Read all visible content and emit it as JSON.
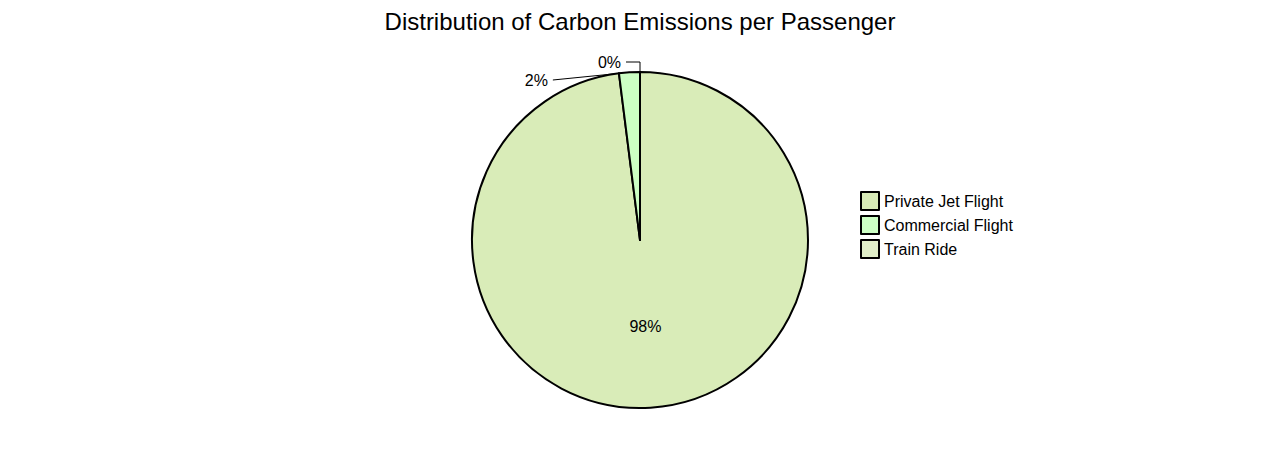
{
  "chart_data": {
    "type": "pie",
    "title": "Distribution of Carbon Emissions per Passenger",
    "categories": [
      "Private Jet Flight",
      "Commercial Flight",
      "Train Ride"
    ],
    "values": [
      98,
      2,
      0
    ],
    "value_labels": [
      "98%",
      "2%",
      "0%"
    ],
    "colors": [
      "#d9ecb8",
      "#ccffc4",
      "#e0eec8"
    ],
    "data_labels": true,
    "legend": "right"
  }
}
